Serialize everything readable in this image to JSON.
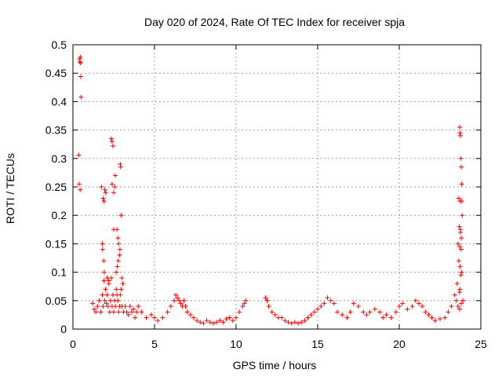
{
  "chart_data": {
    "type": "scatter",
    "title": "Day 020 of 2024, Rate Of TEC Index for receiver spja",
    "xlabel": "GPS time / hours",
    "ylabel": "ROTI / TECUs",
    "xlim": [
      0,
      25
    ],
    "ylim": [
      0,
      0.5
    ],
    "xticks": [
      0,
      5,
      10,
      15,
      20,
      25
    ],
    "yticks": [
      0,
      0.05,
      0.1,
      0.15,
      0.2,
      0.25,
      0.3,
      0.35,
      0.4,
      0.45,
      0.5
    ],
    "xtick_labels": [
      "0",
      "5",
      "10",
      "15",
      "20",
      "25"
    ],
    "ytick_labels": [
      "0",
      "0.05",
      "0.1",
      "0.15",
      "0.2",
      "0.25",
      "0.3",
      "0.35",
      "0.4",
      "0.45",
      "0.5"
    ],
    "grid": true,
    "marker": "+",
    "marker_color": "#ff0000",
    "grid_color": "#a0a0a0",
    "series": [
      {
        "name": "ROTI",
        "x": [
          0.35,
          0.4,
          0.42,
          0.45,
          0.48,
          0.5,
          0.38,
          0.44,
          0.47,
          1.2,
          1.3,
          1.4,
          1.5,
          1.6,
          1.7,
          1.8,
          1.85,
          1.9,
          1.95,
          2.0,
          2.05,
          2.1,
          2.15,
          2.2,
          2.25,
          2.3,
          2.35,
          2.4,
          2.45,
          2.5,
          2.55,
          2.6,
          2.65,
          2.7,
          2.75,
          2.8,
          2.85,
          2.9,
          2.95,
          3.0,
          3.1,
          3.2,
          3.3,
          3.4,
          3.5,
          3.6,
          3.7,
          3.8,
          3.9,
          4.0,
          1.85,
          1.9,
          1.95,
          2.0,
          2.35,
          2.4,
          2.45,
          2.5,
          2.55,
          2.6,
          2.7,
          2.75,
          2.8,
          2.85,
          2.9,
          2.92,
          2.95,
          2.65,
          2.72,
          2.78,
          2.88,
          3.0,
          3.05,
          2.5,
          2.4,
          1.75,
          1.8,
          1.82,
          1.88,
          1.92,
          2.1,
          2.2,
          4.2,
          4.5,
          4.8,
          5.0,
          5.2,
          5.5,
          5.8,
          6.0,
          6.2,
          6.3,
          6.4,
          6.5,
          6.6,
          6.7,
          6.8,
          6.9,
          7.0,
          7.2,
          7.4,
          7.6,
          7.8,
          8.0,
          8.2,
          8.4,
          8.6,
          8.8,
          9.0,
          9.2,
          9.4,
          9.6,
          9.8,
          10.0,
          10.2,
          10.4,
          10.5,
          10.6,
          11.8,
          11.9,
          12.0,
          12.2,
          12.4,
          12.6,
          12.8,
          13.0,
          13.2,
          13.4,
          13.6,
          13.8,
          14.0,
          14.2,
          14.4,
          14.6,
          14.8,
          15.0,
          15.2,
          15.4,
          15.6,
          15.8,
          16.0,
          16.2,
          16.5,
          16.8,
          17.0,
          17.2,
          17.5,
          17.8,
          18.0,
          18.2,
          18.5,
          18.8,
          19.0,
          19.2,
          19.5,
          19.8,
          20.0,
          20.2,
          20.5,
          20.8,
          21.0,
          21.2,
          21.4,
          21.6,
          21.8,
          22.0,
          22.2,
          22.5,
          22.8,
          23.0,
          23.2,
          23.4,
          23.5,
          23.6,
          23.7,
          23.8,
          23.9,
          23.55,
          23.6,
          23.65,
          23.68,
          23.7,
          23.72,
          23.75,
          23.78,
          23.8,
          23.82,
          23.84,
          23.86,
          23.75,
          23.8,
          23.7,
          23.65,
          23.72,
          23.78,
          23.74,
          23.76,
          23.79,
          23.81,
          23.71,
          23.69
        ],
        "y": [
          0.306,
          0.475,
          0.47,
          0.478,
          0.444,
          0.408,
          0.255,
          0.245,
          0.468,
          0.045,
          0.035,
          0.03,
          0.04,
          0.05,
          0.03,
          0.06,
          0.04,
          0.085,
          0.05,
          0.07,
          0.045,
          0.06,
          0.04,
          0.08,
          0.03,
          0.05,
          0.09,
          0.04,
          0.06,
          0.03,
          0.05,
          0.04,
          0.07,
          0.06,
          0.05,
          0.03,
          0.04,
          0.06,
          0.07,
          0.04,
          0.03,
          0.04,
          0.03,
          0.025,
          0.04,
          0.03,
          0.035,
          0.02,
          0.03,
          0.04,
          0.23,
          0.225,
          0.245,
          0.24,
          0.335,
          0.33,
          0.322,
          0.24,
          0.25,
          0.27,
          0.175,
          0.16,
          0.15,
          0.13,
          0.29,
          0.285,
          0.2,
          0.1,
          0.11,
          0.12,
          0.14,
          0.09,
          0.08,
          0.175,
          0.255,
          0.25,
          0.15,
          0.14,
          0.12,
          0.1,
          0.09,
          0.085,
          0.03,
          0.02,
          0.025,
          0.02,
          0.015,
          0.02,
          0.03,
          0.04,
          0.05,
          0.06,
          0.055,
          0.05,
          0.045,
          0.04,
          0.05,
          0.04,
          0.03,
          0.025,
          0.02,
          0.015,
          0.012,
          0.01,
          0.015,
          0.012,
          0.01,
          0.012,
          0.015,
          0.012,
          0.018,
          0.02,
          0.015,
          0.02,
          0.03,
          0.04,
          0.045,
          0.05,
          0.055,
          0.05,
          0.04,
          0.03,
          0.025,
          0.02,
          0.02,
          0.015,
          0.012,
          0.01,
          0.012,
          0.01,
          0.012,
          0.015,
          0.02,
          0.025,
          0.03,
          0.035,
          0.04,
          0.045,
          0.055,
          0.05,
          0.045,
          0.03,
          0.025,
          0.02,
          0.03,
          0.045,
          0.04,
          0.03,
          0.025,
          0.03,
          0.035,
          0.03,
          0.02,
          0.025,
          0.02,
          0.03,
          0.04,
          0.045,
          0.035,
          0.04,
          0.05,
          0.045,
          0.04,
          0.03,
          0.025,
          0.02,
          0.015,
          0.018,
          0.02,
          0.03,
          0.04,
          0.06,
          0.05,
          0.04,
          0.035,
          0.045,
          0.05,
          0.08,
          0.15,
          0.23,
          0.18,
          0.355,
          0.345,
          0.34,
          0.3,
          0.285,
          0.255,
          0.225,
          0.2,
          0.17,
          0.16,
          0.145,
          0.12,
          0.11,
          0.095,
          0.225,
          0.175,
          0.14,
          0.1,
          0.07,
          0.065
        ]
      }
    ]
  }
}
